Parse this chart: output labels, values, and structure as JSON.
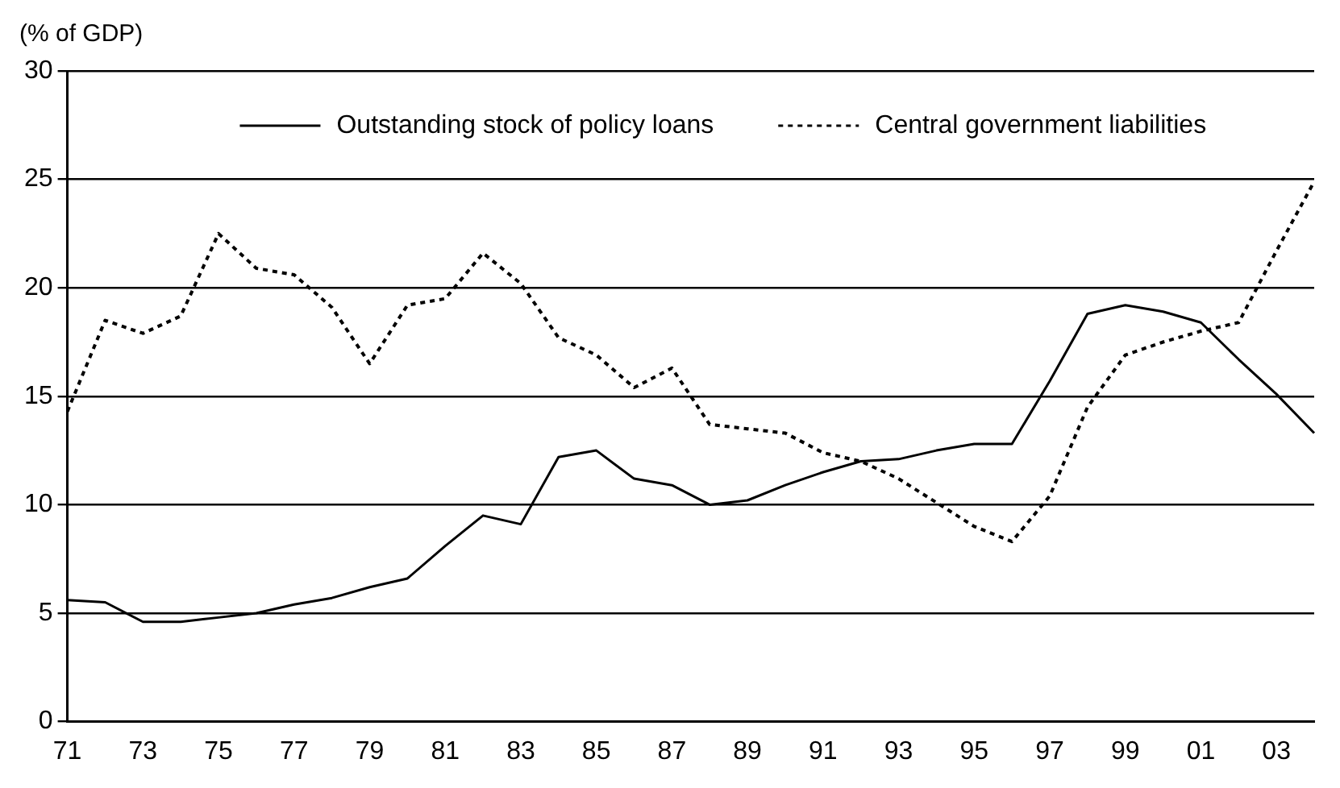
{
  "chart_data": {
    "type": "line",
    "ylabel": "(% of GDP)",
    "categories": [
      "71",
      null,
      "73",
      null,
      "75",
      null,
      "77",
      null,
      "79",
      null,
      "81",
      null,
      "83",
      null,
      "85",
      null,
      "87",
      null,
      "89",
      null,
      "91",
      null,
      "93",
      null,
      "95",
      null,
      "97",
      null,
      "99",
      null,
      "01",
      null,
      "03",
      null
    ],
    "series": [
      {
        "name": "Outstanding stock of policy loans",
        "color": "#000000",
        "line_style": "solid",
        "values": [
          5.6,
          5.5,
          4.6,
          4.6,
          4.8,
          5.0,
          5.4,
          5.7,
          6.2,
          6.6,
          8.1,
          9.5,
          9.1,
          12.2,
          12.5,
          11.2,
          10.9,
          10.0,
          10.2,
          10.9,
          11.5,
          12.0,
          12.1,
          12.5,
          12.8,
          12.8,
          15.7,
          18.8,
          19.2,
          18.9,
          18.4,
          16.7,
          15.1,
          13.3
        ]
      },
      {
        "name": "Central government liabilities",
        "color": "#000000",
        "line_style": "dotted",
        "values": [
          14.3,
          18.5,
          17.9,
          18.7,
          22.5,
          20.9,
          20.6,
          19.1,
          16.5,
          19.2,
          19.5,
          21.6,
          20.2,
          17.7,
          16.9,
          15.4,
          16.3,
          13.7,
          13.5,
          13.3,
          12.4,
          12.0,
          11.2,
          10.1,
          9.0,
          8.3,
          10.4,
          14.5,
          16.9,
          17.5,
          18.0,
          18.4,
          21.7,
          24.9
        ]
      }
    ],
    "ylim": [
      0,
      30
    ],
    "yticks": [
      0,
      5,
      10,
      15,
      20,
      25,
      30
    ],
    "grid": "y",
    "legend": "top",
    "marker": "none"
  }
}
